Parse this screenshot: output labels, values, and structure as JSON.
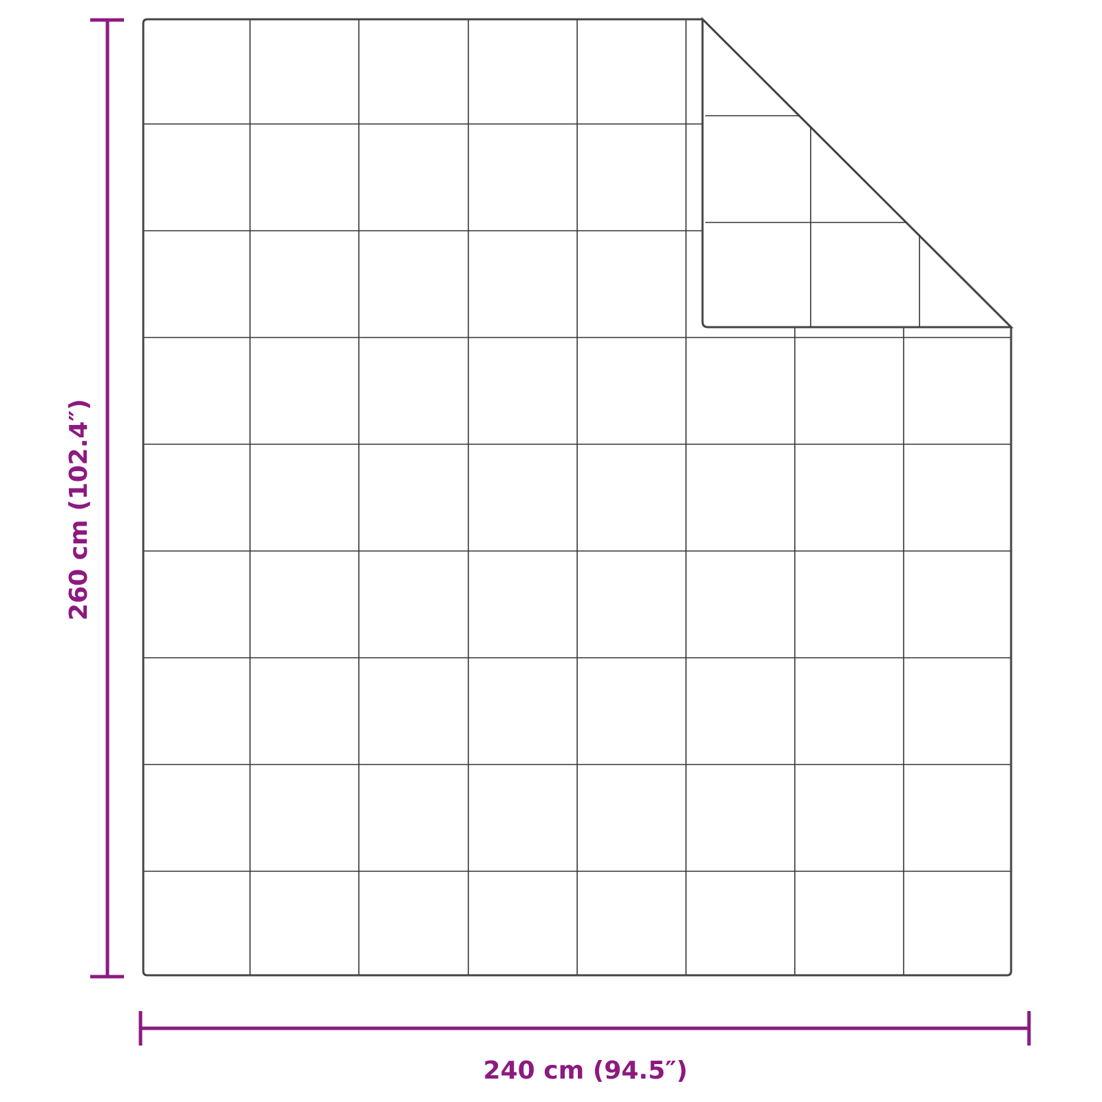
{
  "dimensions": {
    "width_label": "240 cm (94.5″)",
    "height_label": "260 cm (102.4″)"
  },
  "colors": {
    "dimension": "#8c1a80",
    "outline": "#333333"
  },
  "quilt": {
    "grid_columns": 8,
    "grid_rows": 9,
    "folded_corner": "top-right"
  }
}
